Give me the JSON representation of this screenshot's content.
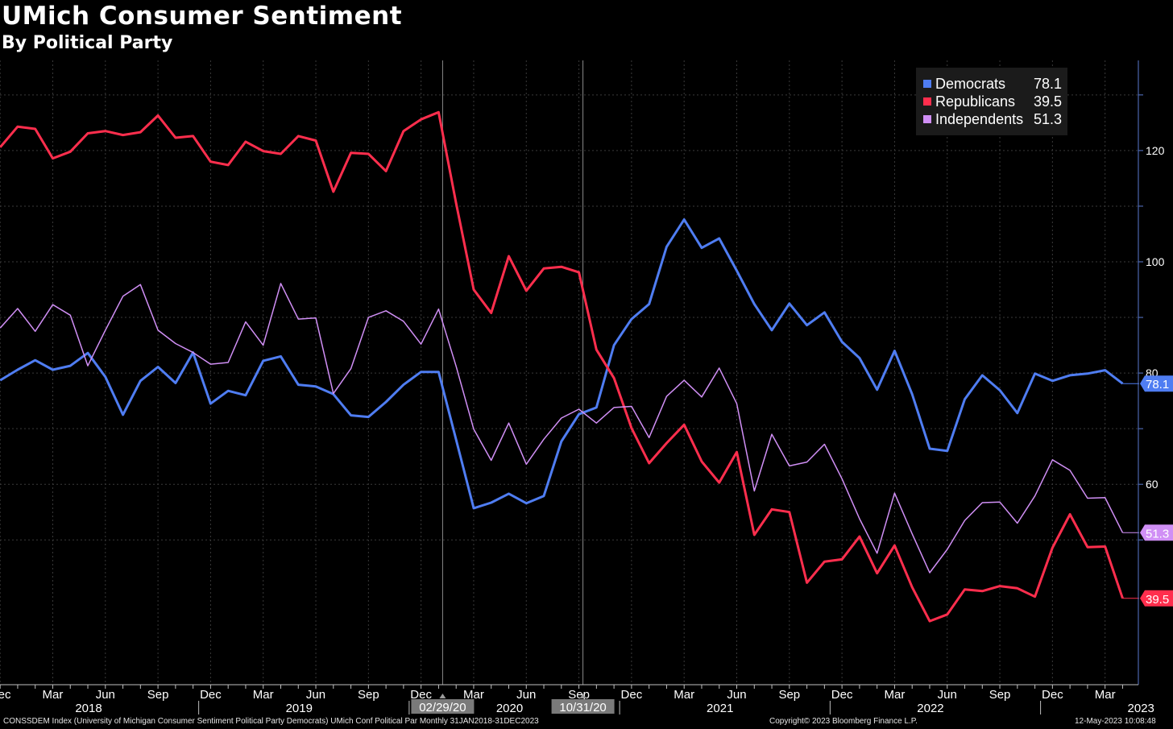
{
  "title": "UMich Consumer Sentiment",
  "subtitle": "By Political Party",
  "footer": {
    "source": "CONSSDEM Index (University of Michigan Consumer Sentiment Political Party Democrats) UMich Conf Political Par  Monthly 31JAN2018-31DEC2023",
    "copyright": "Copyright© 2023 Bloomberg Finance L.P.",
    "timestamp": "12-May-2023 10:08:48"
  },
  "colors": {
    "background": "#000000",
    "democrats": "#4f7df2",
    "republicans": "#ff2e4d",
    "independents": "#d08ff5",
    "grid": "#3a3a3a",
    "axis": "#5a7acf"
  },
  "chart_data": {
    "type": "line",
    "x_start": "2018-01",
    "x_end": "2023-04",
    "x_label_months": [
      "Mar",
      "Jun",
      "Sep",
      "Dec"
    ],
    "x_label_years": [
      "2018",
      "2019",
      "2020",
      "2021",
      "2022",
      "2023"
    ],
    "y_ticks": [
      60,
      80,
      100,
      120
    ],
    "ylim": [
      50,
      137
    ],
    "grid": true,
    "legend_position": "top-right",
    "markers": [
      {
        "date": "2020-02",
        "label": "02/29/20"
      },
      {
        "date": "2020-10",
        "label": "10/31/20"
      }
    ],
    "series": [
      {
        "name": "Democrats",
        "color_key": "democrats",
        "last_value": "78.1",
        "values": [
          78.7,
          80.6,
          82.3,
          80.6,
          81.3,
          83.6,
          79.3,
          72.5,
          78.6,
          81.1,
          78.2,
          83.7,
          74.5,
          76.8,
          76.0,
          82.2,
          83.0,
          77.9,
          77.6,
          76.2,
          72.4,
          72.1,
          74.8,
          77.9,
          80.2,
          80.2,
          68.0,
          55.7,
          56.7,
          58.3,
          56.6,
          57.9,
          67.7,
          72.6,
          73.8,
          85.0,
          89.7,
          92.4,
          102.7,
          107.6,
          102.5,
          104.2,
          98.4,
          92.4,
          87.7,
          92.5,
          88.6,
          90.9,
          85.6,
          82.7,
          77.0,
          84.0,
          76.2,
          66.4,
          66.0,
          75.3,
          79.6,
          76.9,
          72.8,
          79.9,
          78.6,
          79.6,
          79.9,
          80.5,
          78.1
        ]
      },
      {
        "name": "Republicans",
        "color_key": "republicans",
        "last_value": "39.5",
        "values": [
          120.6,
          124.3,
          123.9,
          118.6,
          119.8,
          123.1,
          123.5,
          122.8,
          123.3,
          126.3,
          122.3,
          122.6,
          118.0,
          117.4,
          121.6,
          119.9,
          119.4,
          122.6,
          121.8,
          112.6,
          119.6,
          119.4,
          116.3,
          123.5,
          125.6,
          126.9,
          110.5,
          95.0,
          90.8,
          101.0,
          94.8,
          98.8,
          99.1,
          98.1,
          84.2,
          79.1,
          70.1,
          63.8,
          67.4,
          70.7,
          64.1,
          60.3,
          65.8,
          50.9,
          55.5,
          55.0,
          42.3,
          46.1,
          46.5,
          50.6,
          44.0,
          49.0,
          41.5,
          35.4,
          36.6,
          41.1,
          40.8,
          41.7,
          41.3,
          39.8,
          48.6,
          54.6,
          48.7,
          48.8,
          39.5
        ]
      },
      {
        "name": "Independents",
        "color_key": "independents",
        "last_value": "51.3",
        "values": [
          88.1,
          91.6,
          87.5,
          92.3,
          90.4,
          81.3,
          87.7,
          93.8,
          95.9,
          87.7,
          85.3,
          83.7,
          81.6,
          81.9,
          89.2,
          85.0,
          96.1,
          89.7,
          89.9,
          76.3,
          80.8,
          90.0,
          91.2,
          89.3,
          85.2,
          91.5,
          81.2,
          69.9,
          64.3,
          71.0,
          63.6,
          68.1,
          71.9,
          73.5,
          71.0,
          73.8,
          74.0,
          68.4,
          75.8,
          78.7,
          75.7,
          80.9,
          74.5,
          58.8,
          69.0,
          63.3,
          64.0,
          67.2,
          61.0,
          53.8,
          47.6,
          58.4,
          51.1,
          44.1,
          48.3,
          53.5,
          56.7,
          56.8,
          53.0,
          57.9,
          64.4,
          62.5,
          57.5,
          57.6,
          51.3
        ]
      }
    ]
  }
}
